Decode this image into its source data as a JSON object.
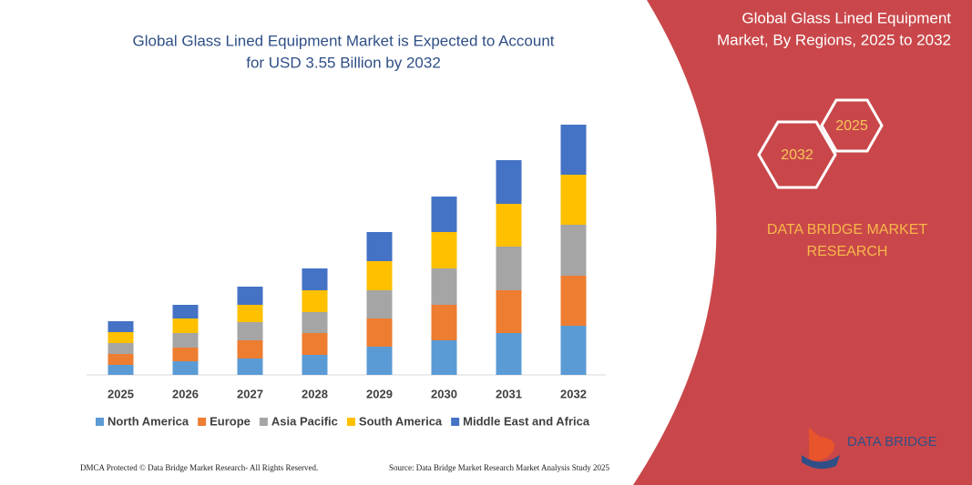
{
  "chart_data": {
    "type": "stacked_bar",
    "title": [
      "Global Glass Lined Equipment Market is Expected to Account",
      "for USD 3.55 Billion by 2032"
    ],
    "categories": [
      "2025",
      "2026",
      "2027",
      "2028",
      "2029",
      "2030",
      "2031",
      "2032"
    ],
    "series": [
      {
        "name": "North America",
        "color": "#5b9bd5",
        "values": [
          11,
          15,
          18,
          22,
          31,
          38,
          46,
          54
        ]
      },
      {
        "name": "Europe",
        "color": "#ed7d31",
        "values": [
          12,
          15,
          20,
          24,
          31,
          39,
          47,
          55
        ]
      },
      {
        "name": "Asia Pacific",
        "color": "#a5a5a5",
        "values": [
          12,
          16,
          20,
          23,
          31,
          40,
          48,
          56
        ]
      },
      {
        "name": "South America",
        "color": "#ffc000",
        "values": [
          12,
          16,
          19,
          24,
          32,
          40,
          47,
          55
        ]
      },
      {
        "name": "Middle East and Africa",
        "color": "#4472c4",
        "values": [
          12,
          15,
          20,
          24,
          32,
          39,
          48,
          55
        ]
      }
    ]
  },
  "panel": {
    "title": [
      "Global Glass Lined Equipment",
      "Market, By Regions, 2025 to 2032"
    ],
    "hex_start": "2025",
    "hex_end": "2032",
    "brand": [
      "DATA BRIDGE MARKET",
      "RESEARCH"
    ],
    "logo": "DATA BRIDGE"
  },
  "footer": {
    "left": "DMCA Protected © Data Bridge Market Research-  All Rights Reserved.",
    "right": "Source: Data Bridge Market Research  Market Analysis Study 2025"
  }
}
